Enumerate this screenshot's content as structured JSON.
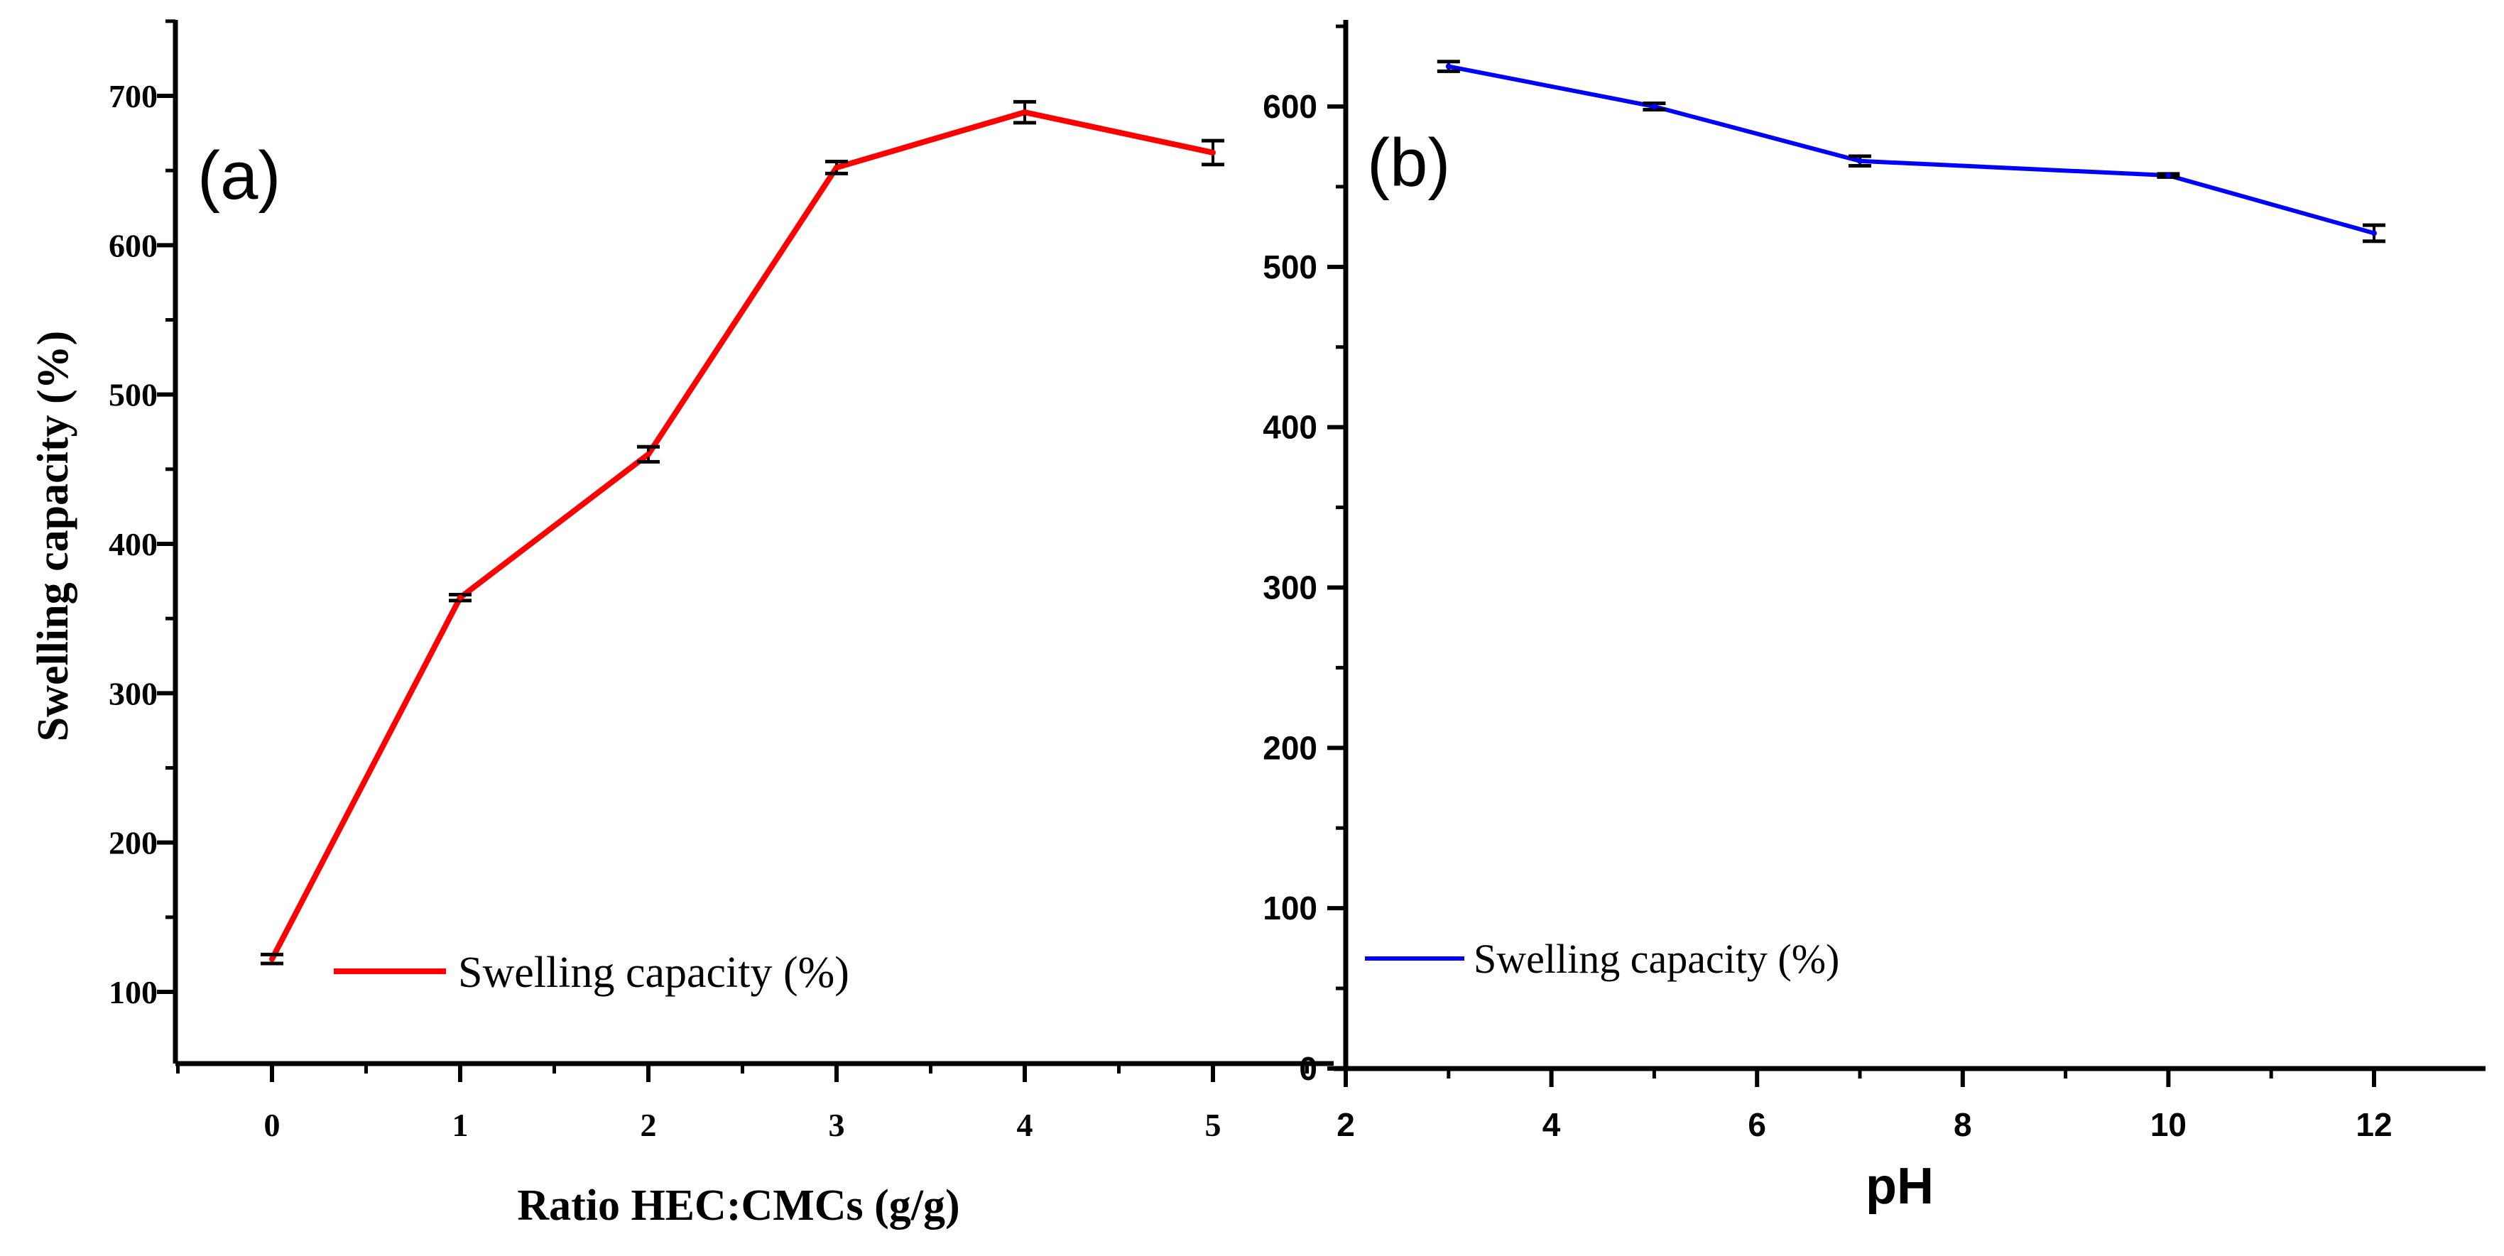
{
  "chart_data": [
    {
      "type": "line",
      "panel_label": "(a)",
      "title": "",
      "xlabel": "Ratio HEC:CMCs (g/g)",
      "ylabel": "Swelling capacity (%)",
      "xlim": [
        -0.5,
        5.5
      ],
      "ylim": [
        45,
        750
      ],
      "xticks": [
        0,
        1,
        2,
        3,
        4,
        5
      ],
      "yticks": [
        100,
        200,
        300,
        400,
        500,
        600,
        700
      ],
      "x": [
        0,
        1,
        2,
        3,
        4,
        5
      ],
      "series": [
        {
          "name": "Swelling capacity (%)",
          "color": "#ff0000",
          "values": [
            122,
            364,
            460,
            652,
            689,
            662
          ],
          "errors": [
            3,
            2,
            5,
            4,
            7,
            8
          ]
        }
      ],
      "legend": "lower-middle",
      "grid": false
    },
    {
      "type": "line",
      "panel_label": "(b)",
      "title": "",
      "xlabel": "pH",
      "ylabel": "",
      "xlim": [
        2,
        12.9
      ],
      "ylim": [
        0,
        650
      ],
      "xticks": [
        2,
        4,
        6,
        8,
        10,
        12
      ],
      "yticks": [
        0,
        100,
        200,
        300,
        400,
        500,
        600
      ],
      "x": [
        3,
        5,
        7,
        10,
        12
      ],
      "series": [
        {
          "name": "Swelling capacity (%)",
          "color": "#0000ff",
          "values": [
            625,
            600,
            566,
            557,
            521
          ],
          "errors": [
            3,
            2,
            3,
            1,
            5
          ]
        }
      ],
      "legend": "lower-left",
      "grid": false
    }
  ]
}
